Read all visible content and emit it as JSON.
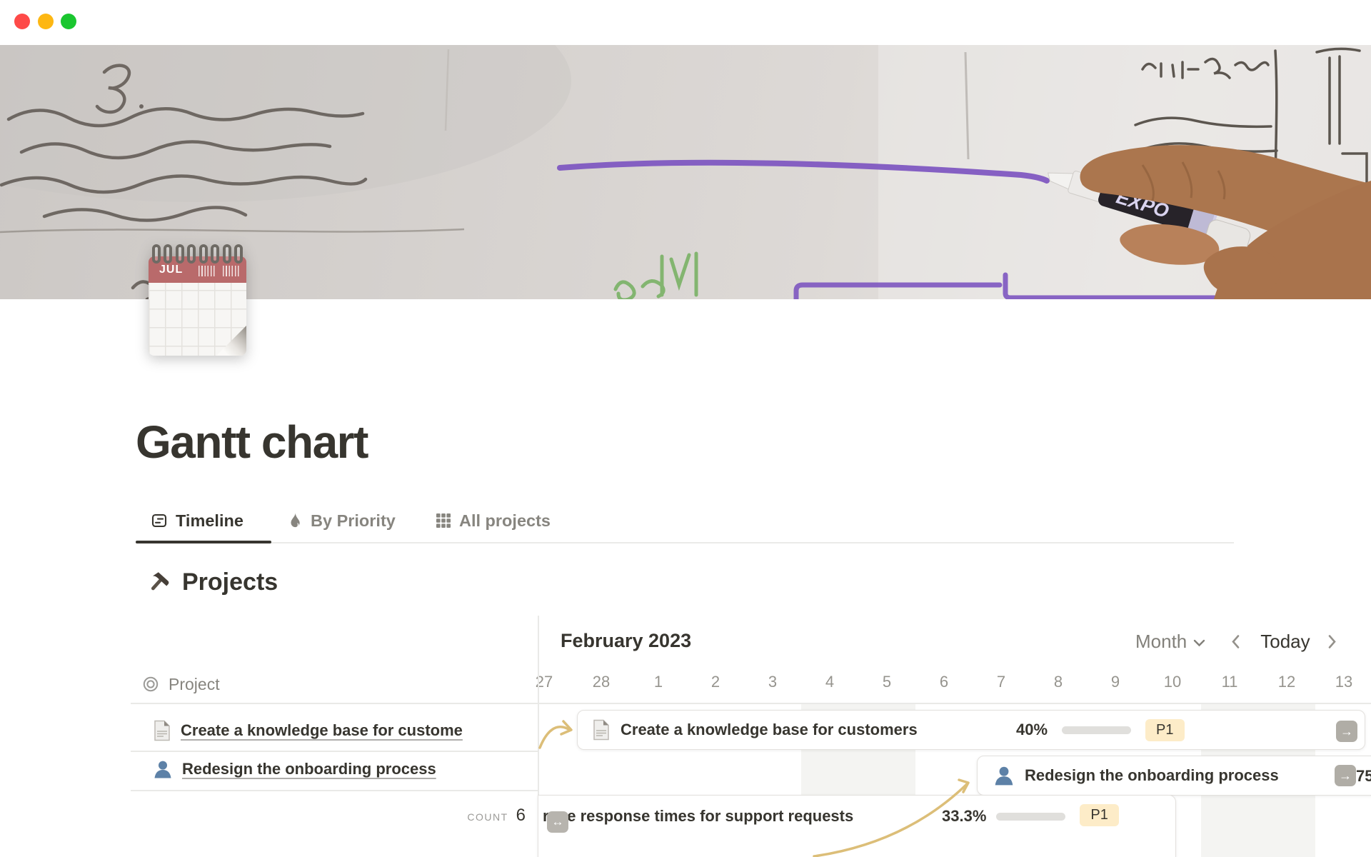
{
  "window": {
    "controls": [
      "close",
      "minimize",
      "zoom"
    ]
  },
  "cover": {
    "marker_label": "EXPO"
  },
  "page": {
    "icon": "spiral-calendar-icon",
    "icon_month_label": "JUL",
    "title": "Gantt chart",
    "tabs": [
      {
        "label": "Timeline",
        "icon": "timeline-icon",
        "active": true
      },
      {
        "label": "By Priority",
        "icon": "flame-icon",
        "active": false
      },
      {
        "label": "All projects",
        "icon": "grid-icon",
        "active": false
      }
    ],
    "section_icon": "hammer-icon",
    "section_title": "Projects"
  },
  "timeline": {
    "month_label": "February 2023",
    "scale_label": "Month",
    "today_label": "Today",
    "project_column_label": "Project",
    "dates": [
      "27",
      "28",
      "1",
      "2",
      "3",
      "4",
      "5",
      "6",
      "7",
      "8",
      "9",
      "10",
      "11",
      "12",
      "13"
    ],
    "weekend_dates": [
      "4",
      "5",
      "11",
      "12"
    ],
    "rows": [
      {
        "icon": "document-icon",
        "cell_title": "Create a knowledge base for custome",
        "bar_title": "Create a knowledge base for customers",
        "progress_label": "40%",
        "progress_percent": 40,
        "priority": "P1"
      },
      {
        "icon": "person-icon",
        "cell_title": "Redesign the onboarding process",
        "bar_title": "Redesign the onboarding process",
        "progress_label_clipped": "75"
      },
      {
        "icon": "none",
        "bar_title": "rove response times for support requests",
        "progress_label": "33.3%",
        "progress_percent": 33,
        "priority": "P1"
      }
    ],
    "footer": {
      "label": "COUNT",
      "value": "6"
    }
  },
  "colors": {
    "traffic_red": "#fe4a48",
    "traffic_yellow": "#fdb713",
    "traffic_green": "#1ac62f",
    "text": "#37352f",
    "muted_text": "#87857f",
    "divider": "#e9e9e7",
    "progress_green": "#5b9a68",
    "progress_track": "#e0dfdc",
    "priority_badge_bg": "#fdecc8",
    "connector_arrow": "#dcbe78",
    "calendar_header_red": "#b96a6b",
    "cover_marker_purple": "#7d55c0",
    "weekend_shade": "#f4f4f2",
    "person_icon_blue": "#5d81a7"
  }
}
